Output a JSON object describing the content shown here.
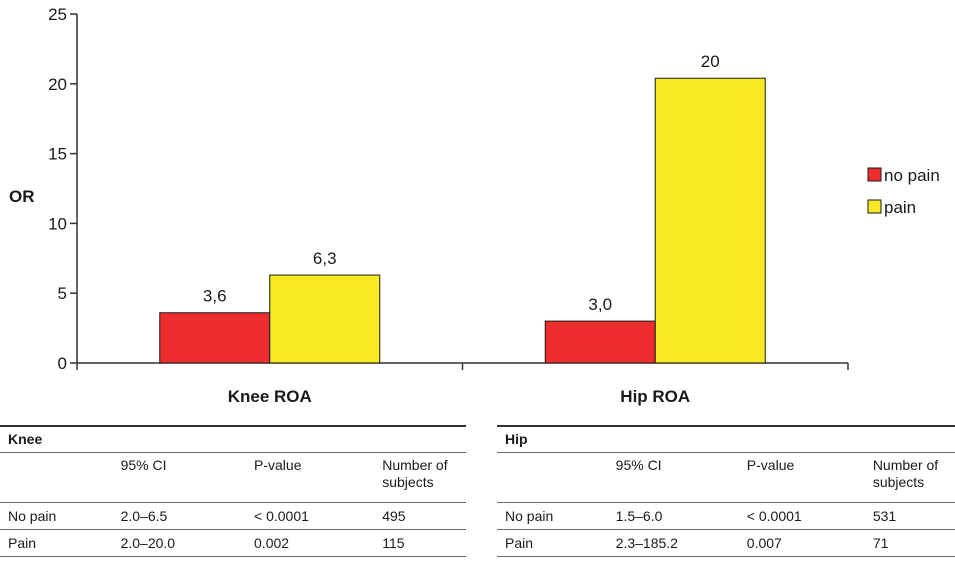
{
  "chart_data": {
    "type": "bar",
    "categories": [
      "Knee ROA",
      "Hip ROA"
    ],
    "series": [
      {
        "name": "no pain",
        "values": [
          3.6,
          3.0
        ],
        "labels": [
          "3,6",
          "3,0"
        ],
        "color": "#ee2e2e"
      },
      {
        "name": "pain",
        "values": [
          6.3,
          20.4
        ],
        "labels": [
          "6,3",
          "20"
        ],
        "color": "#f7ea22"
      }
    ],
    "ylabel": "OR",
    "ylim": [
      0,
      25
    ],
    "yticks": [
      0,
      5,
      10,
      15,
      20,
      25
    ],
    "grid": false,
    "legend_position": "right"
  },
  "tables": [
    {
      "title": "Knee",
      "headers": [
        "",
        "95% CI",
        "P-value",
        "Number of subjects"
      ],
      "rows": [
        [
          "No pain",
          "2.0–6.5",
          "< 0.0001",
          "495"
        ],
        [
          "Pain",
          "2.0–20.0",
          "0.002",
          "115"
        ]
      ]
    },
    {
      "title": "Hip",
      "headers": [
        "",
        "95% CI",
        "P-value",
        "Number of subjects"
      ],
      "rows": [
        [
          "No pain",
          "1.5–6.0",
          "< 0.0001",
          "531"
        ],
        [
          "Pain",
          "2.3–185.2",
          "0.007",
          "71"
        ]
      ]
    }
  ]
}
